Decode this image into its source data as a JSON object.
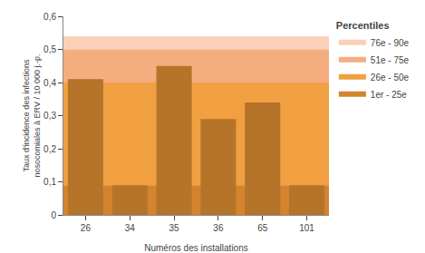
{
  "chart_data": {
    "type": "bar",
    "categories": [
      "26",
      "34",
      "35",
      "36",
      "65",
      "101"
    ],
    "values": [
      0.41,
      0.09,
      0.45,
      0.29,
      0.34,
      0.09
    ],
    "color": "#B5742A",
    "xlabel": "Numéros des installations",
    "ylabel": "Taux d'incidence des infections\nnosocomiales à ERV / 10 000 j.-p.",
    "ylim": [
      0,
      0.6
    ],
    "yticks": [
      0,
      {
        "value": 0.1,
        "label": "0,1"
      },
      {
        "value": 0.2,
        "label": "0,2"
      },
      {
        "value": 0.3,
        "label": "0,3"
      },
      {
        "value": 0.4,
        "label": "0,4"
      },
      {
        "value": 0.5,
        "label": "0,5"
      },
      {
        "value": 0.6,
        "label": "0,6"
      }
    ],
    "grid": false,
    "legend": "right",
    "legend_title": "Percentiles",
    "bands": [
      {
        "name": "76e - 90e",
        "bottom": 0.5,
        "top": 0.54,
        "color": "#FAD0B8"
      },
      {
        "name": "51e - 75e",
        "bottom": 0.4,
        "top": 0.5,
        "color": "#F5AD80"
      },
      {
        "name": "26e - 50e",
        "bottom": 0.09,
        "top": 0.4,
        "color": "#F0A040"
      },
      {
        "name": "1er - 25e",
        "bottom": 0.0,
        "top": 0.09,
        "color": "#D4832E"
      }
    ]
  }
}
